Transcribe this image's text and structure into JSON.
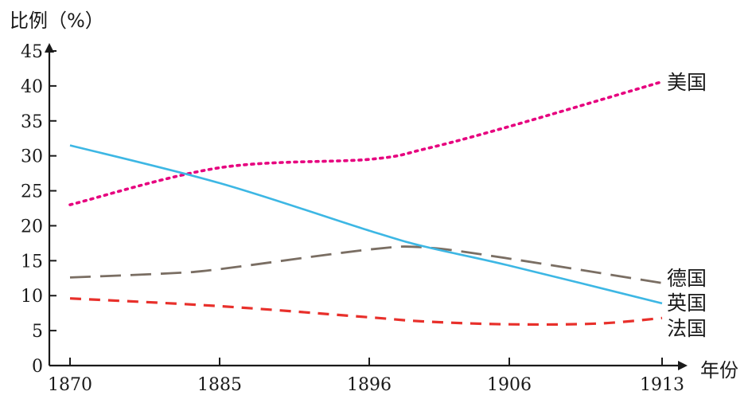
{
  "chart_data": {
    "type": "line",
    "title": "",
    "ylabel": "比例（%）",
    "xlabel": "年份",
    "x": [
      1870,
      1885,
      1896,
      1906,
      1913
    ],
    "x_tick_labels": [
      "1870",
      "1885",
      "1896",
      "1906",
      "1913"
    ],
    "ylim": [
      0,
      45
    ],
    "y_ticks": [
      0,
      5,
      10,
      15,
      20,
      25,
      30,
      35,
      40,
      45
    ],
    "y_tick_labels": [
      "0",
      "5",
      "10",
      "15",
      "20",
      "25",
      "30",
      "35",
      "40",
      "45"
    ],
    "grid": false,
    "legend": "inline-labels-right",
    "series": [
      {
        "name": "美国",
        "color": "#e6007e",
        "style": "dotted",
        "points": [
          [
            1870,
            23
          ],
          [
            1885,
            28.3
          ],
          [
            1896,
            29.5
          ],
          [
            1900,
            31
          ],
          [
            1906,
            34.2
          ],
          [
            1913,
            40.6
          ]
        ]
      },
      {
        "name": "德国",
        "color": "#7a6e63",
        "style": "long-dash",
        "points": [
          [
            1870,
            12.6
          ],
          [
            1880,
            13.2
          ],
          [
            1885,
            13.8
          ],
          [
            1896,
            16.6
          ],
          [
            1900,
            16.9
          ],
          [
            1906,
            15.3
          ],
          [
            1913,
            11.8
          ]
        ]
      },
      {
        "name": "英国",
        "color": "#3db7e4",
        "style": "solid",
        "points": [
          [
            1870,
            31.5
          ],
          [
            1885,
            26.1
          ],
          [
            1896,
            19.3
          ],
          [
            1900,
            17.0
          ],
          [
            1906,
            14.3
          ],
          [
            1913,
            8.9
          ]
        ]
      },
      {
        "name": "法国",
        "color": "#e8302b",
        "style": "short-dash",
        "points": [
          [
            1870,
            9.6
          ],
          [
            1885,
            8.5
          ],
          [
            1896,
            6.9
          ],
          [
            1900,
            6.3
          ],
          [
            1906,
            5.9
          ],
          [
            1910,
            6.0
          ],
          [
            1913,
            6.8
          ]
        ]
      }
    ]
  }
}
